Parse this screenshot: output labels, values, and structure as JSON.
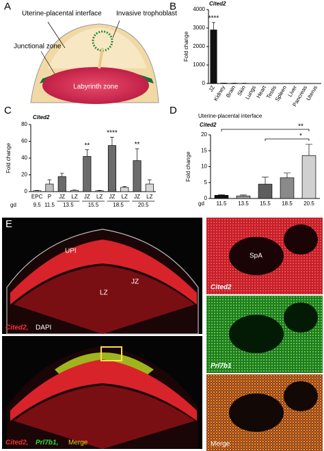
{
  "panel_letters": [
    "A",
    "B",
    "C",
    "D",
    "E"
  ],
  "diagram": {
    "labels": [
      "Uterine-placental interface",
      "Invasive trophoblast",
      "Junctional zone",
      "Labyrinth zone"
    ]
  },
  "chart_data": [
    {
      "type": "bar",
      "title": "Cited2",
      "ylabel": "Fold change",
      "categories": [
        "JZ",
        "Kidney",
        "Brain",
        "Skin",
        "Lungs",
        "Heart",
        "Testis",
        "Spleen",
        "Liver",
        "Pancreas",
        "Uterus"
      ],
      "values": [
        2900,
        20,
        15,
        10,
        5,
        5,
        5,
        5,
        5,
        5,
        5
      ],
      "errors": [
        400,
        5,
        5,
        3,
        2,
        2,
        2,
        2,
        2,
        2,
        2
      ],
      "colors": [
        "#111111",
        "#ffffff",
        "#ffffff",
        "#ffffff",
        "#ffffff",
        "#ffffff",
        "#ffffff",
        "#ffffff",
        "#ffffff",
        "#ffffff",
        "#ffffff"
      ],
      "significance": [
        "****",
        null,
        null,
        null,
        null,
        null,
        null,
        null,
        null,
        null,
        null
      ],
      "ylim": [
        0,
        4000
      ],
      "yticks": [
        0,
        1000,
        2000,
        3000,
        4000
      ]
    },
    {
      "type": "bar",
      "title": "Cited2",
      "ylabel": "Fold change",
      "categories": [
        "EPC",
        "P",
        "JZ",
        "LZ",
        "JZ",
        "LZ",
        "JZ",
        "LZ",
        "JZ",
        "LZ"
      ],
      "values": [
        1,
        9,
        18,
        1.5,
        42,
        1,
        55,
        5,
        37,
        9
      ],
      "errors": [
        0.5,
        5,
        4,
        0.5,
        8,
        0.5,
        10,
        1,
        14,
        5
      ],
      "colors": [
        "#ffffff",
        "#bdbdbd",
        "#6b6b6b",
        "#d9d9d9",
        "#6b6b6b",
        "#d9d9d9",
        "#6b6b6b",
        "#d9d9d9",
        "#6b6b6b",
        "#d9d9d9"
      ],
      "significance": [
        null,
        null,
        null,
        null,
        "**",
        null,
        "****",
        null,
        "**",
        null
      ],
      "xlabel": "gd",
      "groups": [
        "9.5",
        "11.5",
        "13.5",
        "15.5",
        "18.5",
        "20.5"
      ],
      "ylim": [
        0,
        80
      ],
      "yticks": [
        0,
        20,
        40,
        60,
        80
      ]
    },
    {
      "type": "bar",
      "title": "Uterine-placental interface",
      "subtitle": "Cited2",
      "ylabel": "Fold change",
      "categories": [
        "11.5",
        "13.5",
        "15.5",
        "18.5",
        "20.5"
      ],
      "values": [
        1,
        0.8,
        4.5,
        6.5,
        13.5
      ],
      "errors": [
        0.2,
        0.3,
        2.2,
        1.5,
        3.5
      ],
      "colors": [
        "#111111",
        "#9e9e9e",
        "#5e5e5e",
        "#8a8a8a",
        "#d0d0d0"
      ],
      "xlabel": "gd",
      "brackets": [
        {
          "from": "11.5",
          "to": "20.5",
          "label": "**"
        },
        {
          "from": "15.5",
          "to": "20.5",
          "label": "*"
        }
      ],
      "ylim": [
        0,
        20
      ],
      "yticks": [
        0,
        5,
        10,
        15,
        20
      ]
    }
  ],
  "micrographs": {
    "region_labels": [
      "UPI",
      "JZ",
      "LZ",
      "SpA"
    ],
    "caption_top": [
      "Cited2,",
      "DAPI"
    ],
    "caption_bottom": [
      "Cited2,",
      "Prl7b1,",
      "Merge"
    ],
    "tiles": [
      "Cited2",
      "Prl7b1",
      "Merge"
    ]
  }
}
